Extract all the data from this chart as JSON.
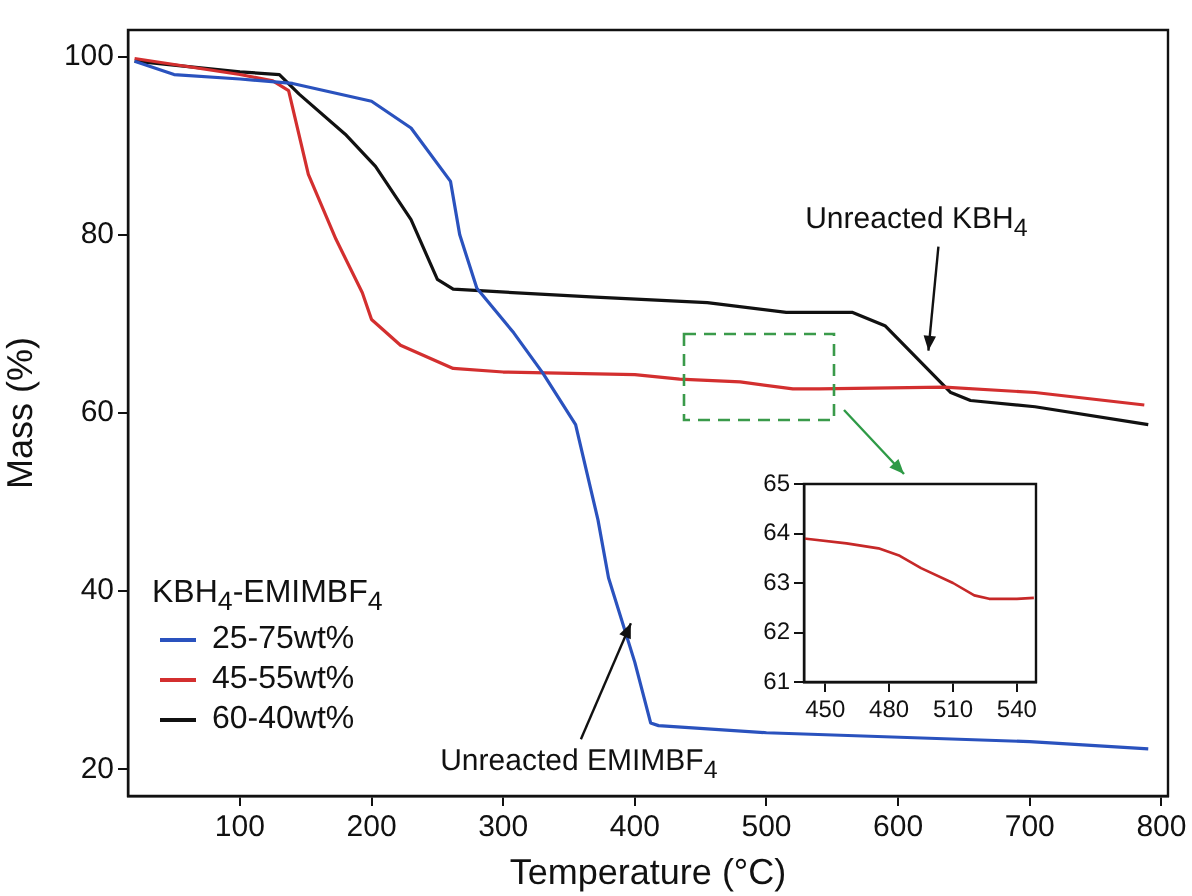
{
  "chart_data": [
    {
      "type": "line",
      "xlabel": "Temperature (°C)",
      "ylabel": "Mass (%)",
      "legend_title": "KBH$_{4}$-EMIMBF$_{4}$",
      "legend": "bottom left",
      "grid": false,
      "xlim": [
        15,
        805
      ],
      "ylim": [
        17,
        103
      ],
      "xticks": [
        100,
        200,
        300,
        400,
        500,
        600,
        700,
        800
      ],
      "yticks": [
        20,
        40,
        60,
        80,
        100
      ],
      "series": [
        {
          "name": "25-75wt%",
          "color": "#2a52be",
          "x": [
            20,
            50,
            100,
            140,
            200,
            230,
            260,
            267,
            280,
            308,
            330,
            355,
            372,
            380,
            400,
            412,
            418,
            500,
            700,
            790
          ],
          "values": [
            99.5,
            98,
            97.5,
            97,
            95,
            92,
            86,
            80,
            74,
            69,
            64.5,
            58.7,
            48,
            41.5,
            32,
            25.2,
            24.9,
            24.1,
            23.1,
            22.3
          ]
        },
        {
          "name": "45-55wt%",
          "color": "#d32f2f",
          "x": [
            20,
            100,
            125,
            137,
            152,
            173,
            193,
            200,
            222,
            262,
            300,
            400,
            434,
            480,
            520,
            540,
            635,
            704,
            787
          ],
          "values": [
            99.8,
            98,
            97.3,
            96.2,
            86.8,
            79.5,
            73.5,
            70.5,
            67.6,
            65,
            64.6,
            64.3,
            63.8,
            63.5,
            62.7,
            62.7,
            62.9,
            62.3,
            60.9
          ]
        },
        {
          "name": "60-40wt%",
          "color": "#111111",
          "x": [
            20,
            100,
            130,
            145,
            180,
            203,
            230,
            250,
            262,
            370,
            455,
            515,
            565,
            590,
            640,
            655,
            704,
            790
          ],
          "values": [
            99.5,
            98.3,
            98,
            95.8,
            91.3,
            87.7,
            81.7,
            75,
            73.9,
            73,
            72.4,
            71.3,
            71.3,
            69.8,
            62.3,
            61.4,
            60.7,
            58.7
          ]
        }
      ],
      "annotations": [
        {
          "text": "Unreacted KBH$_{4}$",
          "x": 623,
          "y": 67.9
        },
        {
          "text": "Unreacted EMIMBF$_{4}$",
          "x": 397,
          "y": 35.5
        }
      ]
    },
    {
      "type": "line",
      "grid": false,
      "legend": false,
      "xlim": [
        440,
        549
      ],
      "ylim": [
        61,
        65
      ],
      "xticks": [
        450,
        480,
        510,
        540
      ],
      "yticks": [
        61,
        62,
        63,
        64,
        65
      ],
      "series": [
        {
          "color": "#c62828",
          "x": [
            440,
            460,
            475,
            485,
            495,
            510,
            520,
            527,
            540,
            548
          ],
          "values": [
            63.9,
            63.8,
            63.7,
            63.55,
            63.3,
            63.0,
            62.75,
            62.68,
            62.68,
            62.7
          ]
        }
      ]
    }
  ]
}
